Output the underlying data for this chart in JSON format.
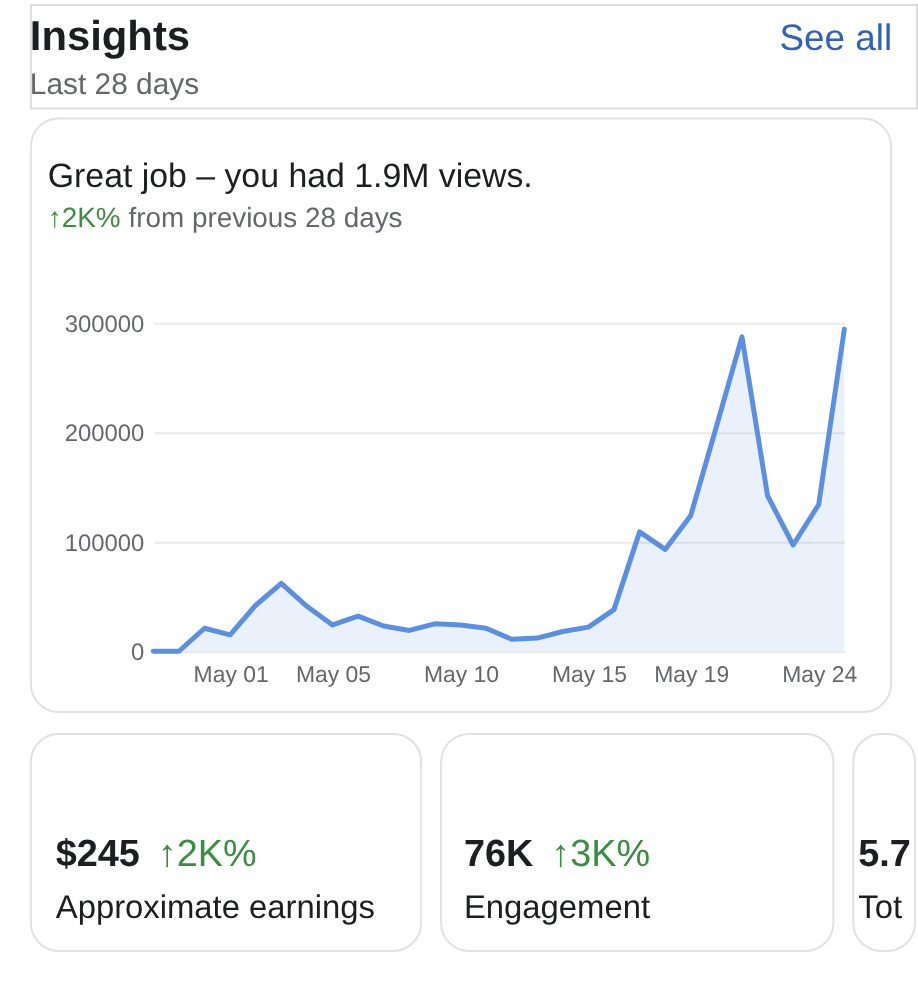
{
  "chart_data": {
    "type": "area",
    "title": "Great job – you had 1.9M views.",
    "subtitle": "↑2K% from previous 28 days",
    "annotations": [
      "Insights",
      "See all",
      "Last 28 days",
      "$245",
      "↑2K%",
      "Approximate earnings",
      "76K",
      "↑3K%",
      "Engagement",
      "5.7",
      "Tot"
    ],
    "categories": [
      null,
      null,
      null,
      "May 01",
      null,
      null,
      null,
      "May 05",
      null,
      null,
      null,
      null,
      "May 10",
      null,
      null,
      null,
      null,
      "May 15",
      null,
      null,
      null,
      "May 19",
      null,
      null,
      null,
      null,
      "May 24",
      null
    ],
    "series": [
      {
        "color": "#5a8fe3",
        "values": [
          0,
          0,
          21000,
          15000,
          42000,
          62000,
          41000,
          24000,
          32000,
          23000,
          19000,
          25000,
          24000,
          21000,
          11000,
          12000,
          18000,
          22000,
          38000,
          109000,
          93000,
          124000,
          205000,
          287000,
          142000,
          97000,
          134000,
          294000
        ]
      }
    ],
    "ylim": [
      0,
      300000
    ],
    "yticks": [
      0,
      100000,
      200000,
      300000
    ],
    "grid": "y"
  }
}
